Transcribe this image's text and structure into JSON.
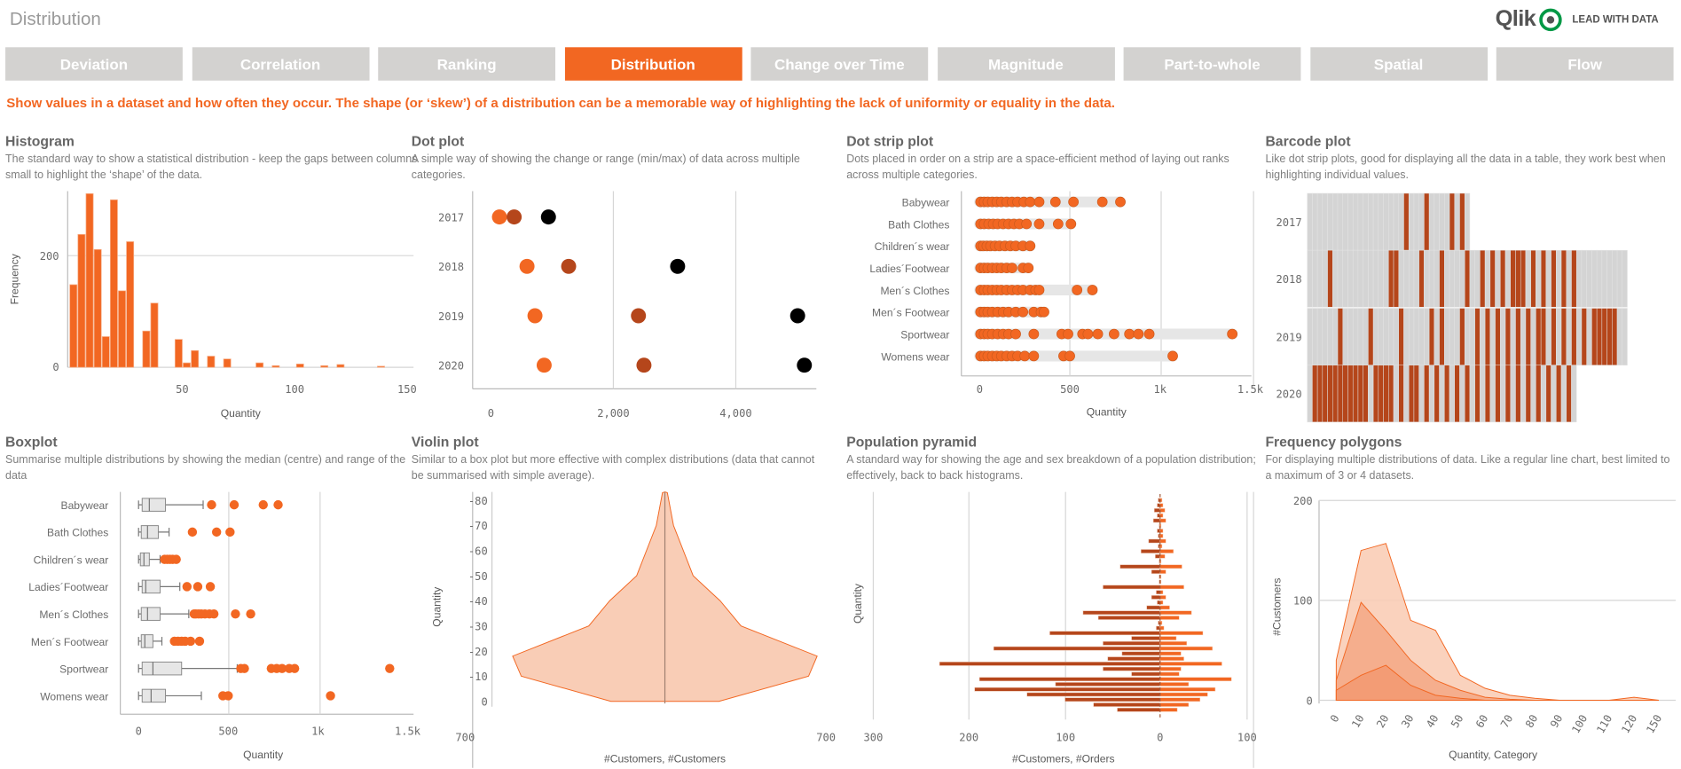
{
  "header": {
    "title": "Distribution",
    "logo_text": "Qlik",
    "tagline": "LEAD WITH DATA"
  },
  "tabs": [
    {
      "label": "Deviation"
    },
    {
      "label": "Correlation"
    },
    {
      "label": "Ranking"
    },
    {
      "label": "Distribution",
      "active": true
    },
    {
      "label": "Change over Time"
    },
    {
      "label": "Magnitude"
    },
    {
      "label": "Part-to-whole"
    },
    {
      "label": "Spatial"
    },
    {
      "label": "Flow"
    }
  ],
  "intro": "Show values in a dataset and how often they occur. The shape (or ‘skew’) of a distribution can be a memorable way of highlighting the lack of uniformity or equality in the data.",
  "colors": {
    "accent": "#f26722",
    "dark": "#b5461b",
    "light_fill": "#f9cdb6",
    "mid_fill": "#f5ab88",
    "tab_inactive": "#d3d2d0",
    "logo_green": "#009845"
  },
  "panels": [
    {
      "title": "Histogram",
      "description": "The standard way to show a statistical distribution - keep the gaps between columns small to highlight the ‘shape’ of the data."
    },
    {
      "title": "Dot plot",
      "description": "A simple way of showing the change or range (min/max) of data across multiple categories."
    },
    {
      "title": "Dot strip plot",
      "description": "Dots placed in order on a strip are a space-efficient method of laying out ranks across multiple categories."
    },
    {
      "title": "Barcode plot",
      "description": "Like dot strip plots, good for displaying all the data in a table, they work best when highlighting individual values."
    },
    {
      "title": "Boxplot",
      "description": "Summarise multiple distributions by showing the median (centre) and range of the data"
    },
    {
      "title": "Violin plot",
      "description": "Similar to a box plot but more effective with complex distributions (data that cannot be summarised with simple average)."
    },
    {
      "title": "Population pyramid",
      "description": "A standard way for showing the age and sex breakdown of a population distribution; effectively, back to back histograms."
    },
    {
      "title": "Frequency polygons",
      "description": "For displaying multiple distributions of data. Like a regular line chart, best limited to a maximum of 3 or 4 datasets."
    }
  ],
  "chart_data": [
    {
      "type": "bar",
      "name": "histogram",
      "xlabel": "Quantity",
      "ylabel": "Frequency",
      "xlim": [
        0,
        150
      ],
      "xticks": [
        "50",
        "100",
        "150"
      ],
      "yticks": [
        "0",
        "200"
      ],
      "bin_width": 3.6,
      "bins": [
        [
          0,
          148
        ],
        [
          3.6,
          238
        ],
        [
          7.2,
          311
        ],
        [
          10.8,
          211
        ],
        [
          14.4,
          55
        ],
        [
          18,
          300
        ],
        [
          21.6,
          137
        ],
        [
          25.2,
          225
        ],
        [
          32.4,
          65
        ],
        [
          36,
          115
        ],
        [
          46.8,
          50
        ],
        [
          50.4,
          8
        ],
        [
          54,
          30
        ],
        [
          61.2,
          20
        ],
        [
          68.4,
          15
        ],
        [
          82.8,
          8
        ],
        [
          90,
          3
        ],
        [
          100.8,
          6
        ],
        [
          111.6,
          3
        ],
        [
          118.8,
          5
        ],
        [
          136.8,
          2
        ]
      ]
    },
    {
      "type": "scatter",
      "name": "dot-plot",
      "categories": [
        "2017",
        "2018",
        "2019",
        "2020"
      ],
      "xticks": [
        "0",
        "2,000",
        "4,000"
      ],
      "series": [
        {
          "color": "#f26722",
          "values": [
            140,
            590,
            720,
            870
          ]
        },
        {
          "color": "#b5461b",
          "values": [
            380,
            1270,
            2410,
            2500
          ]
        },
        {
          "color": "#000000",
          "values": [
            940,
            3050,
            5010,
            5120
          ]
        }
      ]
    },
    {
      "type": "scatter",
      "name": "dot-strip-plot",
      "xlabel": "Quantity",
      "xticks": [
        "0",
        "500",
        "1k",
        "1.5k"
      ],
      "categories": [
        "Babywear",
        "Bath Clothes",
        "Children´s wear",
        "Ladies´Footwear",
        "Men´s Clothes",
        "Men´s Footwear",
        "Sportwear",
        "Womens wear"
      ],
      "values": [
        [
          5,
          25,
          45,
          70,
          95,
          120,
          150,
          180,
          210,
          245,
          280,
          330,
          420,
          520,
          680,
          780
        ],
        [
          5,
          25,
          50,
          75,
          100,
          130,
          160,
          190,
          220,
          260,
          330,
          435,
          506
        ],
        [
          5,
          20,
          40,
          60,
          85,
          110,
          140,
          170,
          200,
          240,
          280
        ],
        [
          5,
          25,
          45,
          70,
          95,
          120,
          150,
          180,
          240,
          270
        ],
        [
          5,
          25,
          45,
          70,
          95,
          120,
          150,
          180,
          210,
          240,
          280,
          310,
          330,
          540,
          625
        ],
        [
          5,
          25,
          45,
          70,
          100,
          130,
          160,
          200,
          240,
          300,
          340,
          357
        ],
        [
          5,
          25,
          45,
          70,
          100,
          130,
          160,
          200,
          300,
          455,
          490,
          570,
          600,
          655,
          745,
          830,
          880,
          940,
          1400
        ],
        [
          5,
          25,
          45,
          70,
          95,
          120,
          150,
          180,
          210,
          250,
          300,
          465,
          500,
          1070
        ]
      ]
    },
    {
      "type": "heatmap",
      "name": "barcode-plot",
      "categories": [
        "2017",
        "2018",
        "2019",
        "2020"
      ],
      "columns": [
        32,
        63,
        63,
        53
      ],
      "highlighted": [
        [
          19,
          23,
          28,
          30
        ],
        [
          4,
          16,
          17,
          22,
          26,
          31,
          34,
          36,
          38,
          40,
          41,
          42,
          44,
          46,
          48,
          50,
          52
        ],
        [
          6,
          12,
          18,
          24,
          26,
          30,
          33,
          35,
          37,
          39,
          41,
          43,
          45,
          46,
          48,
          50,
          52,
          54,
          56,
          57,
          58,
          59,
          60
        ],
        [
          1,
          2,
          3,
          4,
          5,
          6,
          7,
          8,
          9,
          10,
          11,
          13,
          14,
          15,
          16,
          18,
          20,
          21,
          23,
          25,
          27,
          29,
          31,
          33,
          35,
          37,
          39,
          41,
          43,
          45,
          47,
          49,
          51
        ]
      ]
    },
    {
      "type": "boxplot",
      "name": "boxplot",
      "xlabel": "Quantity",
      "xticks": [
        "0",
        "500",
        "1k",
        "1.5k"
      ],
      "categories": [
        "Babywear",
        "Bath Clothes",
        "Children´s wear",
        "Ladies´Footwear",
        "Men´s Clothes",
        "Men´s Footwear",
        "Sportwear",
        "Womens wear"
      ],
      "boxes": [
        {
          "min": 0,
          "q1": 20,
          "median": 60,
          "q3": 150,
          "max": 360,
          "outliers": [
            407,
            533,
            695,
            778
          ]
        },
        {
          "min": 0,
          "q1": 15,
          "median": 50,
          "q3": 110,
          "max": 170,
          "outliers": [
            300,
            435,
            510
          ]
        },
        {
          "min": 0,
          "q1": 10,
          "median": 30,
          "q3": 60,
          "max": 120,
          "outliers": [
            145,
            160,
            175,
            190,
            210
          ]
        },
        {
          "min": 0,
          "q1": 20,
          "median": 40,
          "q3": 120,
          "max": 230,
          "outliers": [
            270,
            330,
            400
          ]
        },
        {
          "min": 0,
          "q1": 15,
          "median": 50,
          "q3": 120,
          "max": 280,
          "outliers": [
            310,
            320,
            335,
            350,
            370,
            395,
            420,
            540,
            625
          ]
        },
        {
          "min": 0,
          "q1": 15,
          "median": 35,
          "q3": 80,
          "max": 130,
          "outliers": [
            200,
            220,
            240,
            260,
            290,
            340
          ]
        },
        {
          "min": 0,
          "q1": 20,
          "median": 80,
          "q3": 240,
          "max": 550,
          "outliers": [
            570,
            590,
            740,
            770,
            800,
            840,
            870,
            1400
          ]
        },
        {
          "min": 0,
          "q1": 20,
          "median": 70,
          "q3": 150,
          "max": 350,
          "outliers": [
            470,
            500,
            1070
          ]
        }
      ]
    },
    {
      "type": "area",
      "name": "violin-plot",
      "ylabel": "Quantity",
      "xlabel": "#Customers, #Customers",
      "yticks": [
        "-80",
        "-70",
        "-60",
        "-50",
        "-40",
        "-30",
        "-20",
        "-10",
        "0"
      ],
      "xticks": [
        "700",
        "700"
      ],
      "profile": [
        [
          -83,
          10
        ],
        [
          -70,
          35
        ],
        [
          -50,
          115
        ],
        [
          -40,
          225
        ],
        [
          -30,
          310
        ],
        [
          -18,
          620
        ],
        [
          -10,
          585
        ],
        [
          0,
          220
        ]
      ]
    },
    {
      "type": "bar",
      "name": "population-pyramid",
      "ylabel": "Quantity",
      "xlabel": "#Customers, #Orders",
      "xticks": [
        "300",
        "200",
        "100",
        "0",
        "100"
      ],
      "rows": [
        [
          2,
          2
        ],
        [
          3,
          3
        ],
        [
          6,
          5
        ],
        [
          3,
          3
        ],
        [
          7,
          6
        ],
        [
          1,
          1
        ],
        [
          3,
          3
        ],
        [
          2,
          3
        ],
        [
          12,
          6
        ],
        [
          2,
          2
        ],
        [
          20,
          14
        ],
        [
          5,
          5
        ],
        [
          1,
          1
        ],
        [
          42,
          23
        ],
        [
          9,
          6
        ],
        [
          1,
          1
        ],
        [
          1,
          1
        ],
        [
          60,
          25
        ],
        [
          4,
          3
        ],
        [
          9,
          6
        ],
        [
          3,
          3
        ],
        [
          14,
          10
        ],
        [
          81,
          33
        ],
        [
          65,
          20
        ],
        [
          2,
          2
        ],
        [
          4,
          4
        ],
        [
          116,
          45
        ],
        [
          30,
          17
        ],
        [
          60,
          28
        ],
        [
          175,
          55
        ],
        [
          40,
          22
        ],
        [
          55,
          25
        ],
        [
          232,
          65
        ],
        [
          60,
          22
        ],
        [
          30,
          20
        ],
        [
          190,
          75
        ],
        [
          110,
          30
        ],
        [
          195,
          58
        ],
        [
          140,
          50
        ],
        [
          100,
          42
        ],
        [
          70,
          30
        ],
        [
          45,
          18
        ]
      ]
    },
    {
      "type": "area",
      "name": "frequency-polygons",
      "ylabel": "#Customers",
      "xlabel": "Quantity, Category",
      "yticks": [
        "0",
        "100",
        "200"
      ],
      "categories": [
        "0",
        "10",
        "20",
        "30",
        "40",
        "50",
        "60",
        "70",
        "80",
        "90",
        "100",
        "110",
        "120",
        "150"
      ],
      "series": [
        {
          "values": [
            40,
            150,
            157,
            80,
            70,
            25,
            12,
            5,
            2,
            0,
            0,
            0,
            3,
            0
          ]
        },
        {
          "values": [
            20,
            98,
            70,
            40,
            20,
            10,
            3,
            1,
            0,
            0,
            0,
            0,
            0,
            0
          ]
        },
        {
          "values": [
            10,
            25,
            35,
            15,
            5,
            2,
            0,
            0,
            0,
            0,
            0,
            0,
            0,
            0
          ]
        }
      ]
    }
  ]
}
